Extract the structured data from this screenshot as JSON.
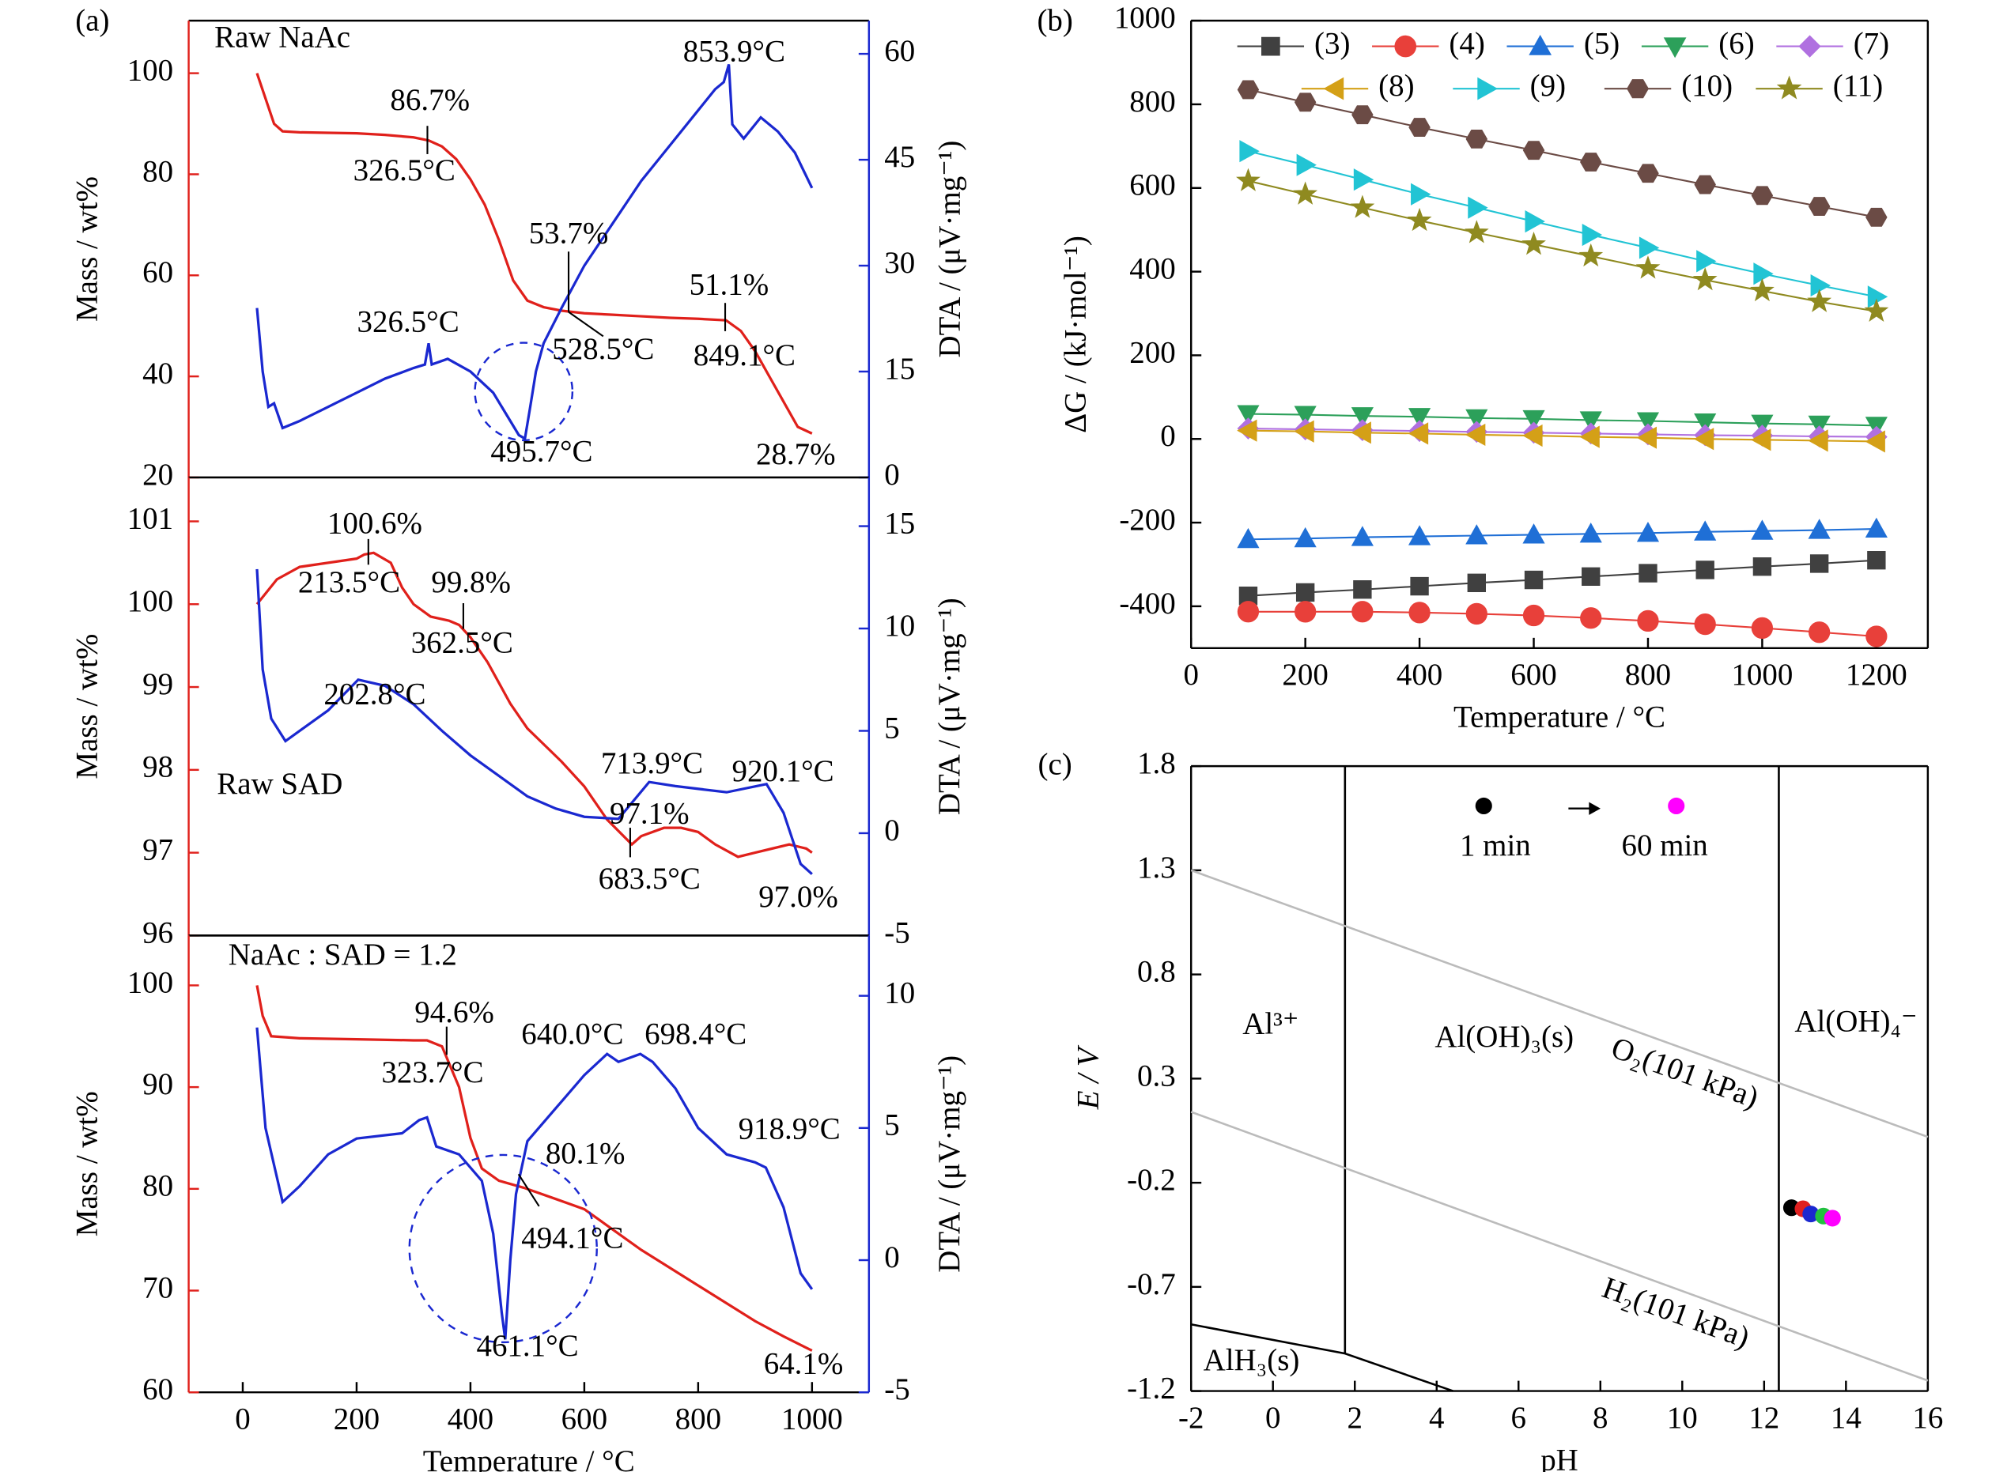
{
  "chart_data": [
    {
      "type": "dual-line",
      "panel": "(a)",
      "xlim": [
        -95,
        1100
      ],
      "ylim": [
        20,
        110.4
      ],
      "yticks": [
        20,
        40,
        60,
        80,
        100
      ],
      "y2lim": [
        0,
        64.7
      ],
      "y2ticks": [
        0,
        15,
        30,
        45,
        60
      ],
      "ylabel": "Mass / wt%",
      "y2label": "DTA / (μV·mg⁻¹)",
      "annotations": [
        "Raw NaAc",
        "86.7%",
        "326.5°C",
        "853.9°C",
        "53.7%",
        "528.5°C",
        "51.1%",
        "849.1°C",
        "326.5°C",
        "495.7°C",
        "28.7%"
      ],
      "series": [
        {
          "color": "#e0201b",
          "x": [
            25,
            40,
            55,
            70,
            100,
            150,
            200,
            250,
            300,
            326.5,
            350,
            375,
            400,
            425,
            450,
            475,
            500,
            528.5,
            560,
            600,
            650,
            700,
            750,
            800,
            849.1,
            875,
            900,
            925,
            950,
            975,
            1000
          ],
          "values": [
            100,
            95,
            90,
            88.5,
            88.3,
            88.2,
            88.1,
            87.8,
            87.3,
            86.7,
            85.5,
            83,
            79,
            74,
            67,
            59,
            55,
            53.7,
            53,
            52.5,
            52.2,
            51.9,
            51.6,
            51.4,
            51.1,
            49,
            45,
            40,
            35,
            30,
            28.7
          ]
        },
        {
          "color": "#1a28d0",
          "axis": "y2",
          "x": [
            25,
            35,
            45,
            55,
            70,
            100,
            150,
            200,
            250,
            300,
            320,
            326.5,
            332,
            360,
            400,
            440,
            470,
            485,
            495.7,
            505,
            515,
            528.5,
            560,
            600,
            650,
            700,
            750,
            800,
            830,
            845,
            853.9,
            860,
            880,
            910,
            940,
            970,
            1000
          ],
          "values": [
            24,
            15,
            10,
            10.5,
            7,
            8,
            10,
            12,
            14,
            15.5,
            16,
            19,
            16,
            16.8,
            15,
            12,
            8,
            6,
            5.5,
            10,
            15,
            19,
            24,
            30,
            36,
            42,
            47,
            52,
            55,
            56,
            58.5,
            50,
            48,
            51,
            49,
            46,
            41
          ]
        }
      ]
    },
    {
      "type": "dual-line",
      "xlim": [
        -95,
        1100
      ],
      "ylim": [
        96,
        101.53
      ],
      "yticks": [
        96,
        97,
        98,
        99,
        100,
        101
      ],
      "y2lim": [
        -5,
        17.38
      ],
      "y2ticks": [
        -5,
        0,
        5,
        10,
        15
      ],
      "ylabel": "Mass / wt%",
      "y2label": "DTA / (μV·mg⁻¹)",
      "annotations": [
        "100.6%",
        "213.5°C",
        "99.8%",
        "362.5°C",
        "202.8°C",
        "Raw SAD",
        "713.9°C",
        "920.1°C",
        "97.1%",
        "683.5°C",
        "97.0%"
      ],
      "series": [
        {
          "color": "#e0201b",
          "x": [
            25,
            60,
            100,
            150,
            200,
            213.5,
            230,
            260,
            280,
            300,
            330,
            362.5,
            380,
            400,
            430,
            470,
            500,
            530,
            560,
            600,
            640,
            683.5,
            700,
            740,
            770,
            800,
            830,
            870,
            900,
            930,
            960,
            990,
            1000
          ],
          "values": [
            100,
            100.3,
            100.45,
            100.5,
            100.55,
            100.6,
            100.62,
            100.5,
            100.2,
            100,
            99.85,
            99.8,
            99.75,
            99.6,
            99.3,
            98.8,
            98.5,
            98.3,
            98.1,
            97.8,
            97.4,
            97.1,
            97.2,
            97.3,
            97.3,
            97.25,
            97.1,
            96.95,
            97.0,
            97.05,
            97.1,
            97.05,
            97.0
          ]
        },
        {
          "color": "#1a28d0",
          "axis": "y2",
          "x": [
            25,
            35,
            50,
            75,
            100,
            150,
            202.8,
            250,
            300,
            350,
            400,
            450,
            500,
            550,
            600,
            660,
            713.9,
            760,
            850,
            920.1,
            950,
            980,
            1000
          ],
          "values": [
            12.9,
            8,
            5.6,
            4.5,
            5,
            6,
            7.5,
            7.2,
            6.3,
            5,
            3.8,
            2.8,
            1.8,
            1.2,
            0.8,
            0.7,
            2.5,
            2.3,
            2.0,
            2.4,
            1,
            -1.5,
            -2
          ]
        }
      ]
    },
    {
      "type": "dual-line",
      "xlim": [
        -95,
        1100
      ],
      "xticks": [
        0,
        200,
        400,
        600,
        800,
        1000
      ],
      "xlabel": "Temperature / °C",
      "ylim": [
        60,
        104.9
      ],
      "yticks": [
        60,
        70,
        80,
        90,
        100
      ],
      "y2lim": [
        -5,
        12.28
      ],
      "y2ticks": [
        -5,
        0,
        5,
        10
      ],
      "ylabel": "Mass / wt%",
      "y2label": "DTA / (μV·mg⁻¹)",
      "annotations": [
        "NaAc : SAD = 1.2",
        "94.6%",
        "323.7°C",
        "640.0°C",
        "698.4°C",
        "80.1%",
        "494.1°C",
        "918.9°C",
        "461.1°C",
        "64.1%"
      ],
      "series": [
        {
          "color": "#e0201b",
          "x": [
            25,
            35,
            50,
            100,
            200,
            300,
            323.7,
            350,
            380,
            400,
            420,
            450,
            494.1,
            550,
            600,
            700,
            800,
            900,
            950,
            1000
          ],
          "values": [
            100,
            97,
            95,
            94.8,
            94.7,
            94.6,
            94.6,
            94,
            90,
            85,
            82,
            80.8,
            80.1,
            79,
            78,
            74,
            70.5,
            67,
            65.5,
            64.1
          ]
        },
        {
          "color": "#1a28d0",
          "axis": "y2",
          "x": [
            25,
            40,
            70,
            100,
            150,
            200,
            280,
            310,
            323.7,
            340,
            380,
            420,
            440,
            455,
            461.1,
            470,
            480,
            500,
            520,
            560,
            600,
            640,
            660,
            698.4,
            720,
            760,
            800,
            850,
            900,
            918.9,
            950,
            980,
            1000
          ],
          "values": [
            8.8,
            5,
            2.2,
            2.8,
            4,
            4.6,
            4.8,
            5.3,
            5.4,
            4.3,
            4,
            3,
            1,
            -2,
            -3,
            0,
            2.5,
            4.5,
            5,
            6,
            7,
            7.8,
            7.5,
            7.8,
            7.5,
            6.5,
            5,
            4,
            3.7,
            3.5,
            2,
            -0.5,
            -1.1
          ]
        }
      ]
    },
    {
      "type": "line",
      "panel": "(b)",
      "xlim": [
        0,
        1290
      ],
      "ylim": [
        -500,
        1000
      ],
      "xticks": [
        0,
        200,
        400,
        600,
        800,
        1000,
        1200
      ],
      "yticks": [
        -400,
        -200,
        0,
        200,
        400,
        600,
        800,
        1000
      ],
      "xlabel": "Temperature / °C",
      "ylabel": "ΔG / (kJ·mol⁻¹)",
      "legend": "upper left",
      "x": [
        100,
        200,
        300,
        400,
        500,
        600,
        700,
        800,
        900,
        1000,
        1100,
        1200
      ],
      "series": [
        {
          "name": "(3)",
          "color": "#404040",
          "marker": "square",
          "values": [
            -375,
            -367,
            -360,
            -352,
            -344,
            -337,
            -329,
            -321,
            -313,
            -305,
            -298,
            -290
          ]
        },
        {
          "name": "(4)",
          "color": "#e8403a",
          "marker": "circle",
          "values": [
            -413,
            -413,
            -413,
            -415,
            -418,
            -422,
            -428,
            -435,
            -443,
            -452,
            -462,
            -472
          ]
        },
        {
          "name": "(5)",
          "color": "#1f6fd6",
          "marker": "triangle-up",
          "values": [
            -240,
            -238,
            -235,
            -233,
            -231,
            -229,
            -227,
            -225,
            -222,
            -220,
            -218,
            -215
          ]
        },
        {
          "name": "(6)",
          "color": "#2ca05a",
          "marker": "triangle-down",
          "values": [
            60,
            58,
            55,
            53,
            50,
            48,
            45,
            43,
            40,
            37,
            35,
            32
          ]
        },
        {
          "name": "(7)",
          "color": "#b070e0",
          "marker": "diamond",
          "values": [
            25,
            23,
            21,
            19,
            17,
            15,
            13,
            11,
            9,
            8,
            6,
            5
          ]
        },
        {
          "name": "(8)",
          "color": "#d4a017",
          "marker": "triangle-left",
          "values": [
            20,
            18,
            15,
            13,
            10,
            8,
            5,
            3,
            0,
            -2,
            -4,
            -6
          ]
        },
        {
          "name": "(9)",
          "color": "#22c4d4",
          "marker": "triangle-right",
          "values": [
            688,
            655,
            620,
            585,
            553,
            520,
            488,
            457,
            425,
            395,
            367,
            340
          ]
        },
        {
          "name": "(10)",
          "color": "#6b4b45",
          "marker": "hexagon",
          "values": [
            835,
            805,
            775,
            745,
            717,
            690,
            662,
            635,
            608,
            582,
            556,
            530
          ]
        },
        {
          "name": "(11)",
          "color": "#8f8a20",
          "marker": "star",
          "values": [
            617,
            585,
            553,
            522,
            493,
            465,
            437,
            408,
            380,
            354,
            328,
            305
          ]
        }
      ]
    },
    {
      "type": "pourbaix",
      "panel": "(c)",
      "xlim": [
        -2,
        16
      ],
      "ylim": [
        -1.2,
        1.8
      ],
      "xticks": [
        -2,
        0,
        2,
        4,
        6,
        8,
        10,
        12,
        14,
        16
      ],
      "yticks": [
        -1.2,
        -0.7,
        -0.2,
        0.3,
        0.8,
        1.3,
        1.8
      ],
      "xlabel": "pH",
      "ylabel": "E / V",
      "lines": [
        {
          "color": "#000000",
          "x": [
            1.76,
            1.76
          ],
          "values": [
            1.8,
            -1.02
          ]
        },
        {
          "color": "#000000",
          "x": [
            12.36,
            12.36
          ],
          "values": [
            1.8,
            -1.2
          ]
        },
        {
          "color": "#000000",
          "x": [
            -2,
            1.76,
            4.4
          ],
          "values": [
            -0.88,
            -1.02,
            -1.2
          ]
        },
        {
          "color": "#bbbbbb",
          "x": [
            -2,
            16
          ],
          "values": [
            1.3,
            0.02
          ]
        },
        {
          "color": "#bbbbbb",
          "x": [
            -2,
            16
          ],
          "values": [
            0.14,
            -1.15
          ]
        }
      ],
      "regions": [
        "Al³⁺",
        "Al(OH)₃(s)",
        "Al(OH)₄⁻",
        "AlH₃(s)",
        "O₂(101 kPa)",
        "H₂(101 kPa)"
      ],
      "points": {
        "x": [
          12.67,
          12.95,
          13.14,
          13.45,
          13.67
        ],
        "values": [
          -0.32,
          -0.325,
          -0.35,
          -0.36,
          -0.37
        ],
        "colors": [
          "#000000",
          "#e02020",
          "#1a28d0",
          "#22c040",
          "#ff00ff"
        ]
      },
      "legend_items": [
        {
          "label": "1 min",
          "color": "#000000"
        },
        {
          "label": "60 min",
          "color": "#ff00ff"
        }
      ]
    }
  ]
}
